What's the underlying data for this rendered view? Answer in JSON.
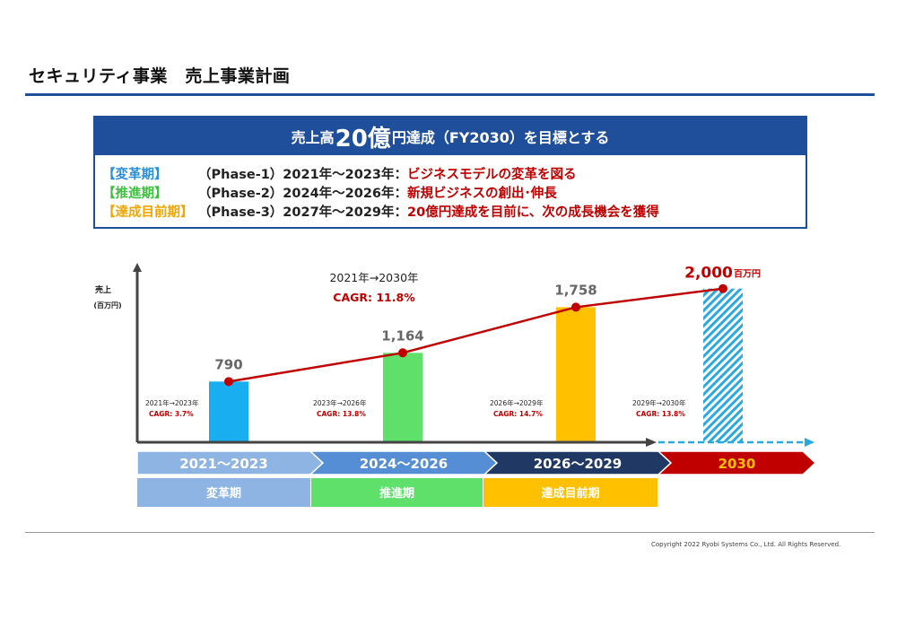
{
  "page": {
    "title": "セキュリティ事業　売上事業計画"
  },
  "goal_box": {
    "head_prefix": "売上高",
    "head_big": "20億",
    "head_suffix": "円達成（FY2030）を目標とする",
    "phases": [
      {
        "bracket": "【変革期】",
        "period": "（Phase-1）2021年～2023年：",
        "text": "ビジネスモデルの変革を図る",
        "color": "#2a8fd8"
      },
      {
        "bracket": "【推進期】",
        "period": "（Phase-2）2024年～2026年：",
        "text": "新規ビジネスの創出･伸長",
        "color": "#3fbf3f"
      },
      {
        "bracket": "【達成目前期】",
        "period": "（Phase-3）2027年～2029年：",
        "text": "20億円達成を目前に、次の成長機会を獲得",
        "color": "#f0a500"
      }
    ]
  },
  "chart_data": {
    "type": "bar",
    "ylabel": "売上",
    "ylabel_unit": "(百万円)",
    "categories": [
      "2021～2023",
      "2024～2026",
      "2026～2029",
      "2030"
    ],
    "values": [
      790,
      1164,
      1758,
      2000
    ],
    "value_labels": [
      "790",
      "1,164",
      "1,758",
      "2,000"
    ],
    "unit_label": "百万円",
    "bar_colors": [
      "#19aef0",
      "#5ee06a",
      "#ffc000",
      "#29a9e0"
    ],
    "ylim": [
      0,
      2300
    ],
    "cagr_headline": {
      "period": "2021年→2030年",
      "value": "CAGR: 11.8%"
    },
    "cagr_notes": [
      {
        "period": "2021年→2023年",
        "value": "CAGR: 3.7%"
      },
      {
        "period": "2023年→2026年",
        "value": "CAGR: 13.8%"
      },
      {
        "period": "2026年→2029年",
        "value": "CAGR: 14.7%"
      },
      {
        "period": "2029年→2030年",
        "value": "CAGR: 13.8%"
      }
    ],
    "line_color": "#c00000"
  },
  "timeline": {
    "arrows": [
      {
        "label": "2021～2023",
        "color": "#8db4e2"
      },
      {
        "label": "2024～2026",
        "color": "#558ed5"
      },
      {
        "label": "2026～2029",
        "color": "#1f3864"
      },
      {
        "label": "2030",
        "color": "#c00000",
        "text_color": "#ffc000"
      }
    ],
    "phases": [
      {
        "label": "変革期",
        "color": "#8db4e2"
      },
      {
        "label": "推進期",
        "color": "#5ee06a"
      },
      {
        "label": "達成目前期",
        "color": "#ffc000"
      }
    ]
  },
  "footer": {
    "copyright": "Copyright 2022 Ryobi Systems Co., Ltd. All Rights Reserved."
  }
}
